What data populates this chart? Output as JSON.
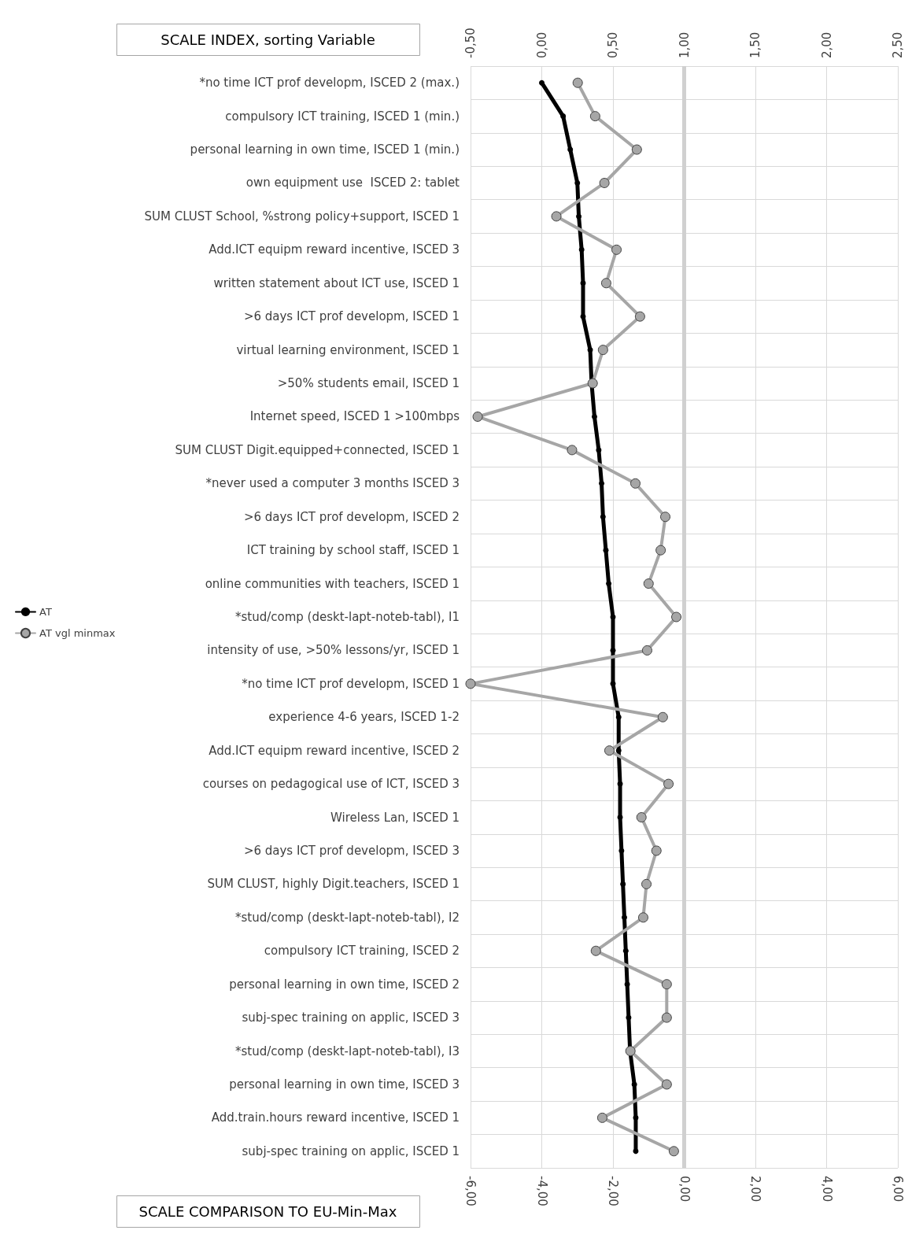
{
  "chart_data": {
    "type": "line",
    "orientation": "horizontal",
    "xlabel": "SCALE COMPARISON TO EU-Min-Max",
    "x2label": "SCALE INDEX, sorting Variable",
    "categories": [
      "*no time ICT prof developm, ISCED 2 (max.)",
      "compulsory ICT training, ISCED 1 (min.)",
      "personal learning in own time, ISCED 1 (min.)",
      "own equipment use  ISCED 2: tablet",
      "SUM CLUST School, %strong policy+support, ISCED 1",
      "Add.ICT equipm reward incentive, ISCED 3",
      "written statement about ICT use, ISCED 1",
      ">6 days ICT prof developm, ISCED 1",
      "virtual learning environment, ISCED 1",
      ">50% students email, ISCED 1",
      "Internet speed, ISCED 1 >100mbps",
      "SUM CLUST Digit.equipped+connected, ISCED 1",
      "*never used a computer 3 months ISCED 3",
      ">6 days ICT prof developm, ISCED 2",
      "ICT training by school staff, ISCED 1",
      "online communities with teachers, ISCED 1",
      "*stud/comp (deskt-lapt-noteb-tabl), I1",
      "intensity of use, >50% lessons/yr, ISCED 1",
      "*no time ICT prof developm, ISCED 1",
      "experience 4-6 years, ISCED 1-2",
      "Add.ICT equipm reward incentive, ISCED 2",
      "courses on pedagogical use of ICT, ISCED 3",
      "Wireless Lan, ISCED 1",
      ">6 days ICT prof developm, ISCED 3",
      "SUM CLUST, highly Digit.teachers, ISCED 1",
      "*stud/comp (deskt-lapt-noteb-tabl), I2",
      "compulsory ICT training, ISCED 2",
      "personal learning in own time, ISCED 2",
      "subj-spec training on applic, ISCED 3",
      "*stud/comp (deskt-lapt-noteb-tabl), I3",
      "personal learning in own time, ISCED 3",
      "Add.train.hours reward incentive, ISCED 1",
      "subj-spec training on applic, ISCED 1"
    ],
    "series": [
      {
        "name": "AT",
        "color": "#000000",
        "axis": "x2",
        "values": [
          0.0,
          0.15,
          0.2,
          0.25,
          0.26,
          0.28,
          0.29,
          0.29,
          0.34,
          0.35,
          0.37,
          0.4,
          0.42,
          0.43,
          0.45,
          0.47,
          0.5,
          0.5,
          0.5,
          0.54,
          0.54,
          0.55,
          0.55,
          0.56,
          0.57,
          0.58,
          0.59,
          0.6,
          0.61,
          0.62,
          0.65,
          0.66,
          0.66
        ]
      },
      {
        "name": "AT vgl minmax",
        "color": "#a6a6a6",
        "values": [
          -2.99,
          -2.5,
          -1.33,
          -2.24,
          -3.59,
          -1.9,
          -2.19,
          -1.24,
          -2.28,
          -2.57,
          -5.8,
          -3.15,
          -1.37,
          -0.53,
          -0.66,
          -1.0,
          -0.22,
          -1.04,
          -6.0,
          -0.6,
          -2.1,
          -0.44,
          -1.2,
          -0.78,
          -1.06,
          -1.15,
          -2.48,
          -0.49,
          -0.49,
          -1.51,
          -0.49,
          -2.3,
          -0.29
        ]
      }
    ],
    "xlim": [
      -6,
      6
    ],
    "xticks": [
      {
        "value": -6,
        "label": "-6,00"
      },
      {
        "value": -4,
        "label": "-4,00"
      },
      {
        "value": -2,
        "label": "-2,00"
      },
      {
        "value": 0,
        "label": "0,00"
      },
      {
        "value": 2,
        "label": "2,00"
      },
      {
        "value": 4,
        "label": "4,00"
      },
      {
        "value": 6,
        "label": "6,00"
      }
    ],
    "x2lim": [
      -0.5,
      2.5
    ],
    "x2ticks": [
      {
        "value": -0.5,
        "label": "-0,50"
      },
      {
        "value": 0,
        "label": "0,00"
      },
      {
        "value": 0.5,
        "label": "0,50"
      },
      {
        "value": 1,
        "label": "1,00"
      },
      {
        "value": 1.5,
        "label": "1,50"
      },
      {
        "value": 2,
        "label": "2,00"
      },
      {
        "value": 2.5,
        "label": "2,50"
      }
    ],
    "ref_lines": [
      {
        "axis": "x",
        "value": 0,
        "color": "#d0d0d0"
      }
    ],
    "grid": true,
    "legend": "left",
    "marker": "circle",
    "line_style": "solid"
  }
}
